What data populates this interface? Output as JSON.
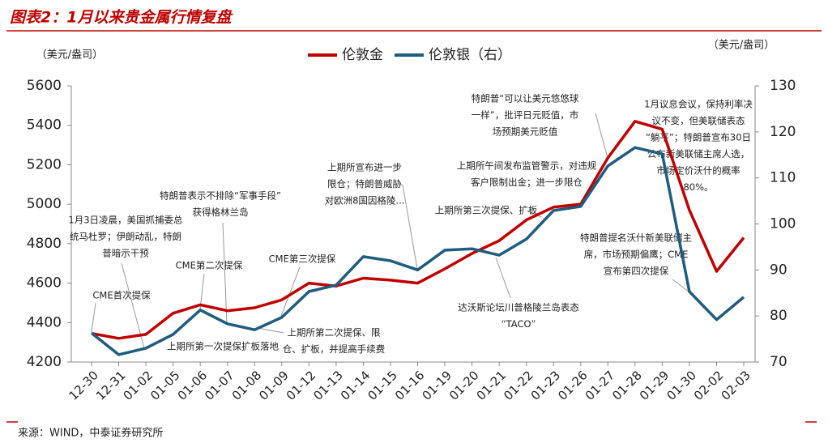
{
  "chart_data": {
    "type": "line",
    "title": "图表2：1月以来贵金属行情复盘",
    "y_label": "（美元/盎司）",
    "y2_label": "（美元/盎司）",
    "categories": [
      "12-30",
      "12-31",
      "01-02",
      "01-05",
      "01-06",
      "01-07",
      "01-08",
      "01-09",
      "01-12",
      "01-13",
      "01-14",
      "01-15",
      "01-16",
      "01-19",
      "01-20",
      "01-21",
      "01-22",
      "01-23",
      "01-26",
      "01-27",
      "01-28",
      "01-29",
      "01-30",
      "02-02",
      "02-03"
    ],
    "series": [
      {
        "name": "伦敦金",
        "color": "#c00000",
        "values": [
          4345,
          4320,
          4340,
          4447,
          4490,
          4460,
          4475,
          4515,
          4600,
          4585,
          4625,
          4615,
          4600,
          4672,
          4750,
          4815,
          4920,
          4985,
          5000,
          5235,
          5420,
          5380,
          4970,
          4660,
          4830
        ]
      },
      {
        "name": "伦敦银（右）",
        "color": "#1f5c7e",
        "axis": "y2",
        "values": [
          76.3,
          71.6,
          73,
          76,
          81.3,
          78.3,
          77,
          79.7,
          85.3,
          86.7,
          92.9,
          92,
          90,
          94.3,
          94.6,
          93.2,
          96.7,
          102.9,
          103.8,
          112.6,
          116.6,
          115.2,
          85.3,
          79.2,
          84.1
        ]
      }
    ],
    "ylim": [
      4200,
      5600
    ],
    "yticks": [
      4200,
      4400,
      4600,
      4800,
      5000,
      5200,
      5400,
      5600
    ],
    "y2lim": [
      70,
      130
    ],
    "y2ticks": [
      70,
      80,
      90,
      100,
      110,
      120,
      130
    ],
    "annotations": [
      {
        "lines": [
          "CME首次提保"
        ]
      },
      {
        "lines": [
          "1月3日凌晨，美国抓捕委总",
          "统马杜罗；伊朗动乱，特朗",
          "普暗示干预"
        ]
      },
      {
        "lines": [
          "CME第二次提保"
        ]
      },
      {
        "lines": [
          "特朗普表示不排除“军事手段”",
          "获得格林兰岛"
        ]
      },
      {
        "lines": [
          "上期所第一次提保扩板落地"
        ]
      },
      {
        "lines": [
          "CME第三次提保"
        ]
      },
      {
        "lines": [
          "上期所第二次提保、限",
          "仓、扩板，并提高手续费"
        ]
      },
      {
        "lines": [
          "上期所宣布进一步",
          "限仓；特朗普威胁",
          "对欧洲8国因格陵..."
        ]
      },
      {
        "lines": [
          "上期所午间发布监管警示，对违规",
          "客户限制出金；进一步限仓"
        ]
      },
      {
        "lines": [
          "上期所第三次提保、扩板"
        ]
      },
      {
        "lines": [
          "达沃斯论坛川普格陵兰岛表态",
          "“TACO”"
        ]
      },
      {
        "lines": [
          "特朗普“可以让美元悠悠球",
          "一样”，批评日元贬值，市",
          "场预期美元贬值"
        ]
      },
      {
        "lines": [
          "1月议息会议，保持利率决",
          "议不变，但美联储表态",
          "“躺平”；特朗普宣布30日",
          "公布新美联储主席人选，",
          "市场定价沃什的概率",
          "80%。"
        ]
      },
      {
        "lines": [
          "特朗普提名沃什新美联储主",
          "席，市场预期偏鹰；CME",
          "宣布第四次提保"
        ]
      }
    ],
    "source": "来源：WIND，中泰证券研究所"
  }
}
